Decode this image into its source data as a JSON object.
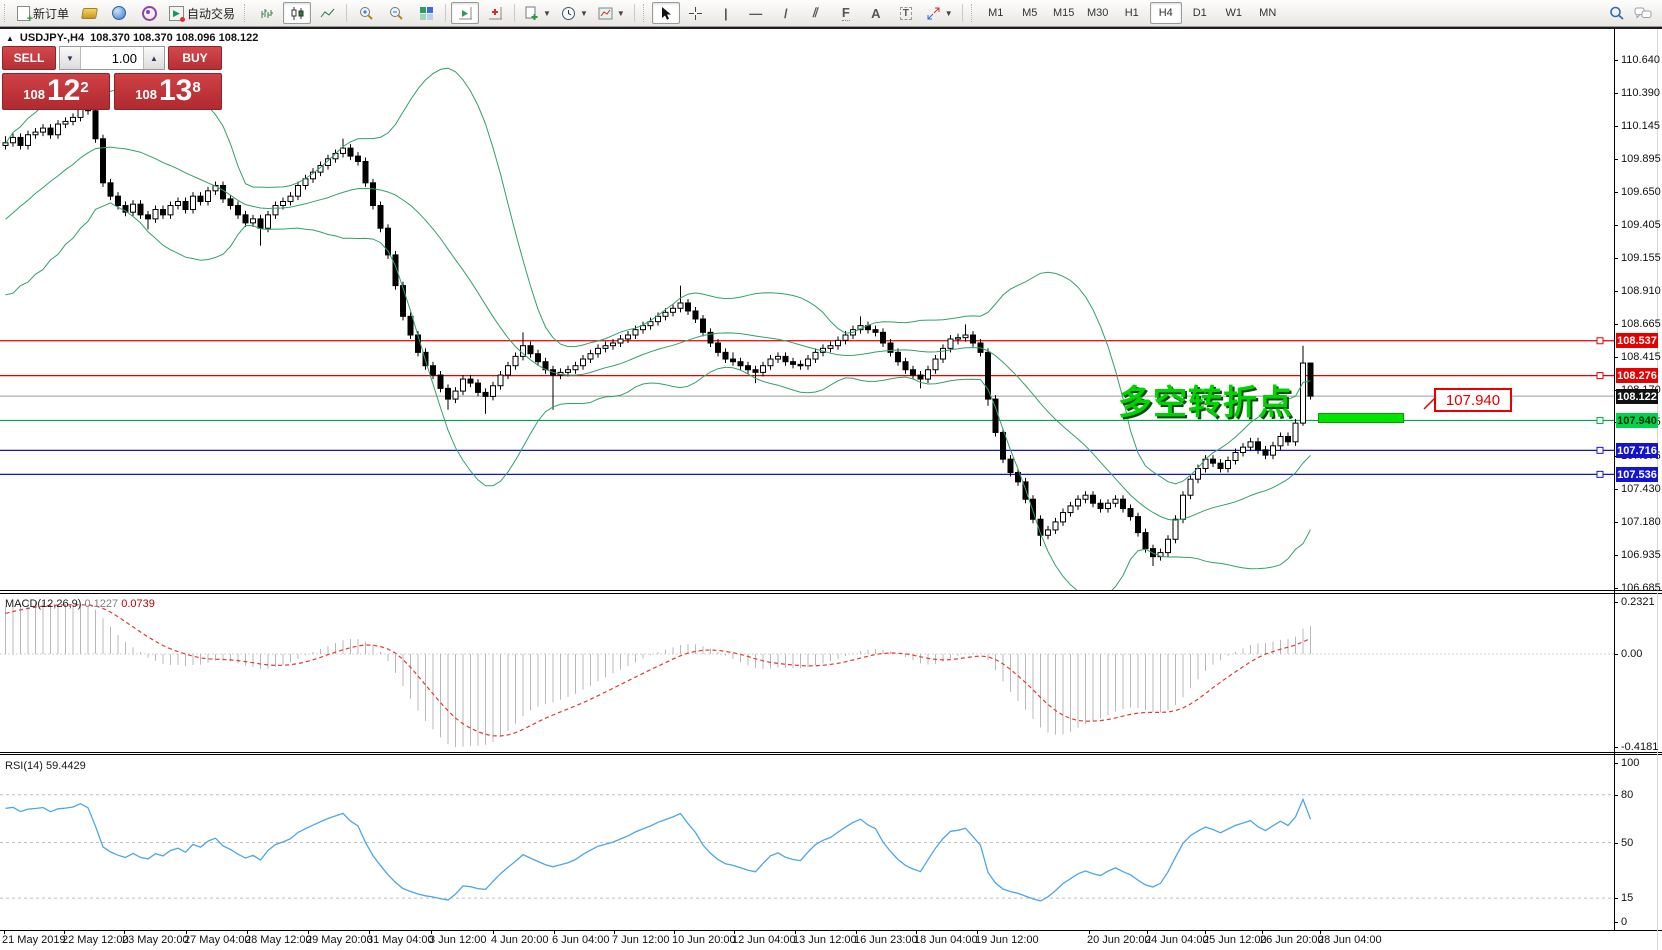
{
  "toolbar": {
    "new_order_label": "新订单",
    "autotrading_label": "自动交易",
    "timeframes": [
      "M1",
      "M5",
      "M15",
      "M30",
      "H1",
      "H4",
      "D1",
      "W1",
      "MN"
    ],
    "active_timeframe": "H4",
    "tool_glyphs": {
      "vline": "|",
      "hline": "—",
      "trendline": "/",
      "channel": "⫽",
      "fibonacci": "F",
      "text": "A",
      "label": "T"
    }
  },
  "chart_header": {
    "collapse_icon": "▲",
    "title": "USDJPY-,H4",
    "ohlc": "108.370 108.370 108.096 108.122"
  },
  "trade_panel": {
    "sell_label": "SELL",
    "buy_label": "BUY",
    "volume": "1.00",
    "sell": {
      "prefix": "108",
      "big": "12",
      "sup": "2"
    },
    "buy": {
      "prefix": "108",
      "big": "13",
      "sup": "8"
    }
  },
  "annotations": {
    "note": "多空转折点",
    "callout": "107.940"
  },
  "price_axis": {
    "ticks": [
      110.64,
      110.39,
      110.145,
      109.895,
      109.65,
      109.405,
      109.155,
      108.91,
      108.665,
      108.415,
      108.17,
      107.925,
      107.675,
      107.43,
      107.18,
      106.935,
      106.685
    ],
    "tags": [
      {
        "text": "108.537",
        "bg": "#e60000",
        "fg": "#ffffff"
      },
      {
        "text": "108.276",
        "bg": "#e60000",
        "fg": "#ffffff"
      },
      {
        "text": "108.122",
        "bg": "#111111",
        "fg": "#ffffff"
      },
      {
        "text": "107.940",
        "bg": "#00d44a",
        "fg": "#002a00"
      },
      {
        "text": "107.716",
        "bg": "#1414cc",
        "fg": "#ffffff"
      },
      {
        "text": "107.536",
        "bg": "#1414cc",
        "fg": "#ffffff"
      }
    ]
  },
  "macd_panel": {
    "label": "MACD(12,26,9)",
    "value_main": "0.1227",
    "value_signal": "0.0739",
    "axis": [
      "0.2321",
      "0.00",
      "-0.4181"
    ]
  },
  "rsi_panel": {
    "label": "RSI(14) 59.4429",
    "axis": [
      100,
      80,
      50,
      15,
      0
    ],
    "levels": [
      80,
      50,
      15
    ]
  },
  "time_axis": [
    [
      2,
      "21 May 2019"
    ],
    [
      62,
      "22 May 12:00"
    ],
    [
      122,
      "23 May 20:00"
    ],
    [
      184,
      "27 May 04:00"
    ],
    [
      245,
      "28 May 12:00"
    ],
    [
      306,
      "29 May 20:00"
    ],
    [
      367,
      "31 May 04:00"
    ],
    [
      429,
      "3 Jun 12:00"
    ],
    [
      491,
      "4 Jun 20:00"
    ],
    [
      552,
      "6 Jun 04:00"
    ],
    [
      612,
      "7 Jun 12:00"
    ],
    [
      672,
      "10 Jun 20:00"
    ],
    [
      732,
      "12 Jun 04:00"
    ],
    [
      793,
      "13 Jun 12:00"
    ],
    [
      854,
      "16 Jun 23:00"
    ],
    [
      914,
      "18 Jun 04:00"
    ],
    [
      975,
      "19 Jun 12:00"
    ],
    [
      1087,
      "20 Jun 20:00"
    ],
    [
      1145,
      "24 Jun 04:00"
    ],
    [
      1203,
      "25 Jun 12:00"
    ],
    [
      1260,
      "26 Jun 20:00"
    ],
    [
      1318,
      "28 Jun 04:00"
    ]
  ],
  "chart_data": {
    "type": "candlestick",
    "symbol": "USDJPY-",
    "timeframe": "H4",
    "title": "USDJPY-,H4",
    "ohlc_current": {
      "open": 108.37,
      "high": 108.37,
      "low": 108.096,
      "close": 108.122
    },
    "ylim": [
      106.685,
      110.64
    ],
    "current_price": 108.122,
    "levels": [
      {
        "price": 108.537,
        "color": "#e60000"
      },
      {
        "price": 108.276,
        "color": "#e60000"
      },
      {
        "price": 107.94,
        "color": "#00a84a"
      },
      {
        "price": 107.716,
        "color": "#1414cc"
      },
      {
        "price": 107.536,
        "color": "#1414cc"
      }
    ],
    "indicators": [
      {
        "name": "Bollinger Bands",
        "period": 20,
        "deviation": 2
      },
      {
        "name": "MACD",
        "fast": 12,
        "slow": 26,
        "signal": 9,
        "values": [
          0.1227,
          0.0739
        ],
        "range": [
          0.2321,
          -0.4181
        ]
      },
      {
        "name": "RSI",
        "period": 14,
        "value": 59.4429,
        "levels": [
          80,
          50,
          15
        ]
      }
    ],
    "pre_closes": [
      108.6,
      108.72,
      108.66,
      108.8,
      108.74,
      108.88,
      108.8,
      108.95,
      108.86,
      109.02,
      108.94,
      109.1,
      109.0,
      109.18,
      109.08,
      109.26,
      109.16,
      109.34,
      109.24,
      109.42,
      109.32,
      109.5,
      109.42,
      109.6,
      109.52,
      109.7,
      109.62,
      109.8,
      109.74,
      109.92
    ],
    "candles": [
      [
        110.0,
        110.07,
        109.97,
        110.02
      ],
      [
        110.02,
        110.09,
        109.99,
        110.06
      ],
      [
        110.06,
        110.09,
        109.97,
        110.0
      ],
      [
        110.0,
        110.11,
        109.97,
        110.08
      ],
      [
        110.08,
        110.13,
        110.05,
        110.1
      ],
      [
        110.1,
        110.16,
        110.07,
        110.13
      ],
      [
        110.13,
        110.16,
        110.05,
        110.08
      ],
      [
        110.08,
        110.19,
        110.05,
        110.16
      ],
      [
        110.16,
        110.21,
        110.13,
        110.18
      ],
      [
        110.18,
        110.24,
        110.15,
        110.21
      ],
      [
        110.21,
        110.42,
        110.18,
        110.3
      ],
      [
        110.3,
        110.45,
        110.23,
        110.26
      ],
      [
        110.26,
        110.29,
        110.02,
        110.05
      ],
      [
        110.05,
        110.08,
        109.69,
        109.72
      ],
      [
        109.72,
        109.75,
        109.59,
        109.62
      ],
      [
        109.62,
        109.65,
        109.52,
        109.55
      ],
      [
        109.55,
        109.58,
        109.47,
        109.5
      ],
      [
        109.5,
        109.59,
        109.47,
        109.56
      ],
      [
        109.56,
        109.59,
        109.45,
        109.48
      ],
      [
        109.48,
        109.51,
        109.37,
        109.45
      ],
      [
        109.45,
        109.55,
        109.42,
        109.52
      ],
      [
        109.52,
        109.55,
        109.45,
        109.48
      ],
      [
        109.48,
        109.58,
        109.45,
        109.55
      ],
      [
        109.55,
        109.61,
        109.52,
        109.58
      ],
      [
        109.58,
        109.61,
        109.49,
        109.52
      ],
      [
        109.52,
        109.65,
        109.49,
        109.62
      ],
      [
        109.62,
        109.65,
        109.55,
        109.58
      ],
      [
        109.58,
        109.69,
        109.55,
        109.66
      ],
      [
        109.66,
        109.73,
        109.63,
        109.7
      ],
      [
        109.7,
        109.73,
        109.57,
        109.6
      ],
      [
        109.6,
        109.63,
        109.52,
        109.55
      ],
      [
        109.55,
        109.58,
        109.45,
        109.48
      ],
      [
        109.48,
        109.51,
        109.39,
        109.42
      ],
      [
        109.42,
        109.48,
        109.39,
        109.45
      ],
      [
        109.45,
        109.48,
        109.25,
        109.38
      ],
      [
        109.38,
        109.51,
        109.35,
        109.48
      ],
      [
        109.48,
        109.58,
        109.45,
        109.55
      ],
      [
        109.55,
        109.61,
        109.52,
        109.58
      ],
      [
        109.58,
        109.65,
        109.55,
        109.62
      ],
      [
        109.62,
        109.73,
        109.59,
        109.7
      ],
      [
        109.7,
        109.78,
        109.67,
        109.75
      ],
      [
        109.75,
        109.83,
        109.72,
        109.8
      ],
      [
        109.8,
        109.88,
        109.77,
        109.85
      ],
      [
        109.85,
        109.93,
        109.82,
        109.9
      ],
      [
        109.9,
        109.97,
        109.87,
        109.94
      ],
      [
        109.94,
        110.05,
        109.91,
        109.98
      ],
      [
        109.98,
        110.01,
        109.89,
        109.92
      ],
      [
        109.92,
        109.95,
        109.85,
        109.88
      ],
      [
        109.88,
        109.91,
        109.69,
        109.72
      ],
      [
        109.72,
        109.75,
        109.52,
        109.55
      ],
      [
        109.55,
        109.58,
        109.35,
        109.38
      ],
      [
        109.38,
        109.41,
        109.15,
        109.18
      ],
      [
        109.18,
        109.21,
        108.92,
        108.95
      ],
      [
        108.95,
        108.98,
        108.69,
        108.72
      ],
      [
        108.72,
        108.75,
        108.55,
        108.58
      ],
      [
        108.58,
        108.61,
        108.42,
        108.45
      ],
      [
        108.45,
        108.48,
        108.32,
        108.35
      ],
      [
        108.35,
        108.38,
        108.25,
        108.28
      ],
      [
        108.28,
        108.31,
        108.15,
        108.18
      ],
      [
        108.18,
        108.21,
        108.02,
        108.1
      ],
      [
        108.1,
        108.19,
        108.07,
        108.16
      ],
      [
        108.16,
        108.28,
        108.13,
        108.25
      ],
      [
        108.25,
        108.28,
        108.19,
        108.22
      ],
      [
        108.22,
        108.25,
        108.12,
        108.15
      ],
      [
        108.15,
        108.18,
        107.99,
        108.12
      ],
      [
        108.12,
        108.23,
        108.09,
        108.2
      ],
      [
        108.2,
        108.31,
        108.17,
        108.28
      ],
      [
        108.28,
        108.38,
        108.25,
        108.35
      ],
      [
        108.35,
        108.45,
        108.32,
        108.42
      ],
      [
        108.42,
        108.6,
        108.39,
        108.5
      ],
      [
        108.5,
        108.53,
        108.41,
        108.44
      ],
      [
        108.44,
        108.47,
        108.35,
        108.38
      ],
      [
        108.38,
        108.41,
        108.29,
        108.32
      ],
      [
        108.32,
        108.35,
        108.02,
        108.28
      ],
      [
        108.28,
        108.33,
        108.25,
        108.3
      ],
      [
        108.3,
        108.35,
        108.27,
        108.32
      ],
      [
        108.32,
        108.38,
        108.29,
        108.35
      ],
      [
        108.35,
        108.43,
        108.32,
        108.4
      ],
      [
        108.4,
        108.47,
        108.37,
        108.44
      ],
      [
        108.44,
        108.51,
        108.41,
        108.48
      ],
      [
        108.48,
        108.53,
        108.45,
        108.5
      ],
      [
        108.5,
        108.55,
        108.47,
        108.52
      ],
      [
        108.52,
        108.58,
        108.49,
        108.55
      ],
      [
        108.55,
        108.61,
        108.52,
        108.58
      ],
      [
        108.58,
        108.65,
        108.55,
        108.62
      ],
      [
        108.62,
        108.68,
        108.59,
        108.65
      ],
      [
        108.65,
        108.71,
        108.62,
        108.68
      ],
      [
        108.68,
        108.75,
        108.65,
        108.72
      ],
      [
        108.72,
        108.78,
        108.69,
        108.75
      ],
      [
        108.75,
        108.81,
        108.72,
        108.78
      ],
      [
        108.78,
        108.95,
        108.75,
        108.82
      ],
      [
        108.82,
        108.85,
        108.73,
        108.76
      ],
      [
        108.76,
        108.79,
        108.67,
        108.7
      ],
      [
        108.7,
        108.73,
        108.57,
        108.6
      ],
      [
        108.6,
        108.63,
        108.49,
        108.52
      ],
      [
        108.52,
        108.55,
        108.42,
        108.45
      ],
      [
        108.45,
        108.48,
        108.37,
        108.4
      ],
      [
        108.4,
        108.45,
        108.35,
        108.38
      ],
      [
        108.38,
        108.41,
        108.32,
        108.35
      ],
      [
        108.35,
        108.38,
        108.29,
        108.32
      ],
      [
        108.32,
        108.35,
        108.22,
        108.3
      ],
      [
        108.3,
        108.38,
        108.27,
        108.35
      ],
      [
        108.35,
        108.43,
        108.32,
        108.4
      ],
      [
        108.4,
        108.45,
        108.37,
        108.42
      ],
      [
        108.42,
        108.45,
        108.35,
        108.38
      ],
      [
        108.38,
        108.41,
        108.33,
        108.36
      ],
      [
        108.36,
        108.39,
        108.32,
        108.35
      ],
      [
        108.35,
        108.43,
        108.32,
        108.4
      ],
      [
        108.4,
        108.48,
        108.37,
        108.45
      ],
      [
        108.45,
        108.51,
        108.42,
        108.48
      ],
      [
        108.48,
        108.53,
        108.45,
        108.5
      ],
      [
        108.5,
        108.57,
        108.47,
        108.54
      ],
      [
        108.54,
        108.61,
        108.51,
        108.58
      ],
      [
        108.58,
        108.65,
        108.55,
        108.62
      ],
      [
        108.62,
        108.72,
        108.59,
        108.65
      ],
      [
        108.65,
        108.68,
        108.59,
        108.62
      ],
      [
        108.62,
        108.65,
        108.57,
        108.6
      ],
      [
        108.6,
        108.63,
        108.49,
        108.52
      ],
      [
        108.52,
        108.55,
        108.42,
        108.45
      ],
      [
        108.45,
        108.48,
        108.35,
        108.38
      ],
      [
        108.38,
        108.41,
        108.29,
        108.32
      ],
      [
        108.32,
        108.35,
        108.25,
        108.28
      ],
      [
        108.28,
        108.31,
        108.18,
        108.25
      ],
      [
        108.25,
        108.35,
        108.22,
        108.32
      ],
      [
        108.32,
        108.43,
        108.29,
        108.4
      ],
      [
        108.4,
        108.51,
        108.37,
        108.48
      ],
      [
        108.48,
        108.58,
        108.45,
        108.55
      ],
      [
        108.55,
        108.59,
        108.51,
        108.56
      ],
      [
        108.56,
        108.66,
        108.53,
        108.58
      ],
      [
        108.58,
        108.61,
        108.49,
        108.52
      ],
      [
        108.52,
        108.55,
        108.42,
        108.45
      ],
      [
        108.45,
        108.48,
        108.05,
        108.1
      ],
      [
        108.1,
        108.13,
        107.82,
        107.85
      ],
      [
        107.85,
        107.88,
        107.62,
        107.65
      ],
      [
        107.65,
        107.68,
        107.52,
        107.55
      ],
      [
        107.55,
        107.58,
        107.45,
        107.48
      ],
      [
        107.48,
        107.51,
        107.32,
        107.35
      ],
      [
        107.35,
        107.38,
        107.17,
        107.2
      ],
      [
        107.2,
        107.23,
        107.0,
        107.08
      ],
      [
        107.08,
        107.15,
        107.05,
        107.12
      ],
      [
        107.12,
        107.21,
        107.09,
        107.18
      ],
      [
        107.18,
        107.28,
        107.15,
        107.25
      ],
      [
        107.25,
        107.33,
        107.22,
        107.3
      ],
      [
        107.3,
        107.38,
        107.27,
        107.35
      ],
      [
        107.35,
        107.41,
        107.32,
        107.38
      ],
      [
        107.38,
        107.41,
        107.29,
        107.32
      ],
      [
        107.32,
        107.35,
        107.25,
        107.28
      ],
      [
        107.28,
        107.35,
        107.25,
        107.32
      ],
      [
        107.32,
        107.38,
        107.29,
        107.35
      ],
      [
        107.35,
        107.38,
        107.25,
        107.28
      ],
      [
        107.28,
        107.31,
        107.19,
        107.22
      ],
      [
        107.22,
        107.25,
        107.07,
        107.1
      ],
      [
        107.1,
        107.13,
        106.95,
        106.98
      ],
      [
        106.98,
        107.01,
        106.85,
        106.92
      ],
      [
        106.92,
        106.98,
        106.89,
        106.95
      ],
      [
        106.95,
        107.08,
        106.92,
        107.05
      ],
      [
        107.05,
        107.23,
        107.02,
        107.2
      ],
      [
        107.2,
        107.41,
        107.17,
        107.38
      ],
      [
        107.38,
        107.53,
        107.35,
        107.5
      ],
      [
        107.5,
        107.61,
        107.47,
        107.58
      ],
      [
        107.58,
        107.68,
        107.55,
        107.65
      ],
      [
        107.65,
        107.68,
        107.59,
        107.62
      ],
      [
        107.62,
        107.65,
        107.55,
        107.58
      ],
      [
        107.58,
        107.67,
        107.55,
        107.64
      ],
      [
        107.64,
        107.73,
        107.61,
        107.7
      ],
      [
        107.7,
        107.77,
        107.67,
        107.74
      ],
      [
        107.74,
        107.81,
        107.71,
        107.78
      ],
      [
        107.78,
        107.81,
        107.69,
        107.72
      ],
      [
        107.72,
        107.75,
        107.65,
        107.68
      ],
      [
        107.68,
        107.78,
        107.65,
        107.75
      ],
      [
        107.75,
        107.85,
        107.72,
        107.82
      ],
      [
        107.82,
        107.85,
        107.75,
        107.78
      ],
      [
        107.78,
        107.95,
        107.75,
        107.92
      ],
      [
        107.92,
        108.5,
        107.9,
        108.37
      ],
      [
        108.37,
        108.37,
        108.096,
        108.122
      ]
    ]
  }
}
